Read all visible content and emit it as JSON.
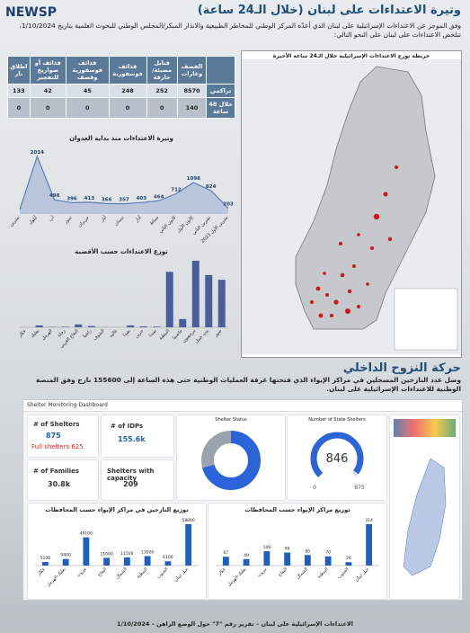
{
  "header": {
    "logo": "NEWSP",
    "title": "وتيرة الاعتداءات على لبنان (خلال الـ24 ساعة)",
    "intro": "وفق الموجز عن الاعتداءات الإسرائيلية على لبنان الذي أعدّه المركز الوطني للمخاطر الطبيعية والانذار المبكر/المجلس الوطني للبحوث العلمية بتاريخ 1/10/2024، تتلخص الاعتداءات على لبنان على النحو التالي:"
  },
  "map": {
    "title": "خريطة توزع الاعتداءات الإسرائيلية خلال الـ24 ساعة الأخيرة"
  },
  "table": {
    "columns": [
      "القصف وغارات",
      "قنابل مضيئة/حارقة",
      "قذائف فوسفورية",
      "قذائف فوسفورية وقصف",
      "قذائف أو صواريخ للتفجير",
      "اطلاق نار"
    ],
    "rows": [
      {
        "label": "تراكمي",
        "values": [
          8570,
          252,
          248,
          45,
          42,
          133
        ]
      },
      {
        "label": "خلال 48 ساعة",
        "values": [
          140,
          0,
          0,
          0,
          0,
          0
        ]
      }
    ]
  },
  "charts": [
    {
      "type": "line",
      "title": "وتيرة الاعتداءات منذ بداية العدوان",
      "categories": [
        "تشرين الأول 2024",
        "أيلول",
        "آب",
        "تموز",
        "حزيران",
        "أيار",
        "نيسان",
        "آذار",
        "شباط",
        "كانون الثاني",
        "كانون الأول",
        "تشرين الثاني",
        "تشرين الأول 2023"
      ],
      "values": [
        150,
        2014,
        498,
        396,
        413,
        366,
        357,
        403,
        464,
        712,
        1098,
        824,
        203
      ],
      "color": "#5b7fb0"
    },
    {
      "type": "bar",
      "title": "توزع الاعتداءات حسب الأقضية",
      "categories": [
        "عكار",
        "بعلبك",
        "الهرمل",
        "زحلة",
        "البقاع الغربي",
        "راشيا",
        "الشوف",
        "عاليه",
        "بعبدا",
        "جزين",
        "صيدا",
        "النبطية",
        "حاصبيا",
        "مرجعيون",
        "بنت جبيل",
        "صور"
      ],
      "values": [
        2,
        60,
        10,
        15,
        90,
        40,
        5,
        3,
        60,
        30,
        20,
        1750,
        260,
        2100,
        1650,
        1500
      ],
      "color": "#4a5f9a"
    }
  ],
  "displacement": {
    "title": "حركة النزوح الداخلي",
    "text": "وصل عدد النازحين المسجلين في مراكز الإيواء الذي فتحتها غرفة العمليات الوطنية حتى هذه الساعة إلى 155600 نازح وفق المنصة الوطنية للاعتداءات الإسرائيلية على لبنان."
  },
  "dashboard": {
    "title": "Shelter Monitoring Dashboard",
    "shelters_label": "# of Shelters",
    "shelters": "875",
    "full_shelters": "Full shelters 625",
    "idps_label": "# of IDPs",
    "idps": "155.6k",
    "families_label": "# of Families",
    "families": "30.8k",
    "capacity_label": "Shelters with capacity",
    "capacity": "209",
    "status_title": "Shelter Status",
    "status_values": [
      71,
      29
    ],
    "gauge_title": "Number of State Shelters",
    "gauge": {
      "value": 846,
      "min": 0,
      "max": 875
    },
    "charts": [
      {
        "type": "bar",
        "title": "توزيع النازحين في مراكز الإيواء حسب المحافظات",
        "categories": [
          "عكار",
          "بعلبك-الهرمل",
          "بيروت",
          "البقاع",
          "الشمال",
          "النبطية",
          "الجنوب",
          "جبل لبنان"
        ],
        "values": [
          5100,
          9400,
          40100,
          11000,
          11500,
          13500,
          6100,
          58800
        ],
        "color": "#1f5fbf"
      },
      {
        "type": "bar",
        "title": "توزيع مراكز الإيواء حسب المحافظات",
        "categories": [
          "عكار",
          "بعلبك-الهرمل",
          "بيروت",
          "البقاع",
          "الشمال",
          "النبطية",
          "الجنوب",
          "جبل لبنان"
        ],
        "values": [
          67,
          49,
          109,
          99,
          80,
          70,
          26,
          314
        ],
        "color": "#1f5fbf"
      }
    ]
  },
  "footer": "الاعتداءات الإسرائيلية على لبنان – تقرير رقم \"7\" حول الوضع الراهن – 1/10/2024"
}
